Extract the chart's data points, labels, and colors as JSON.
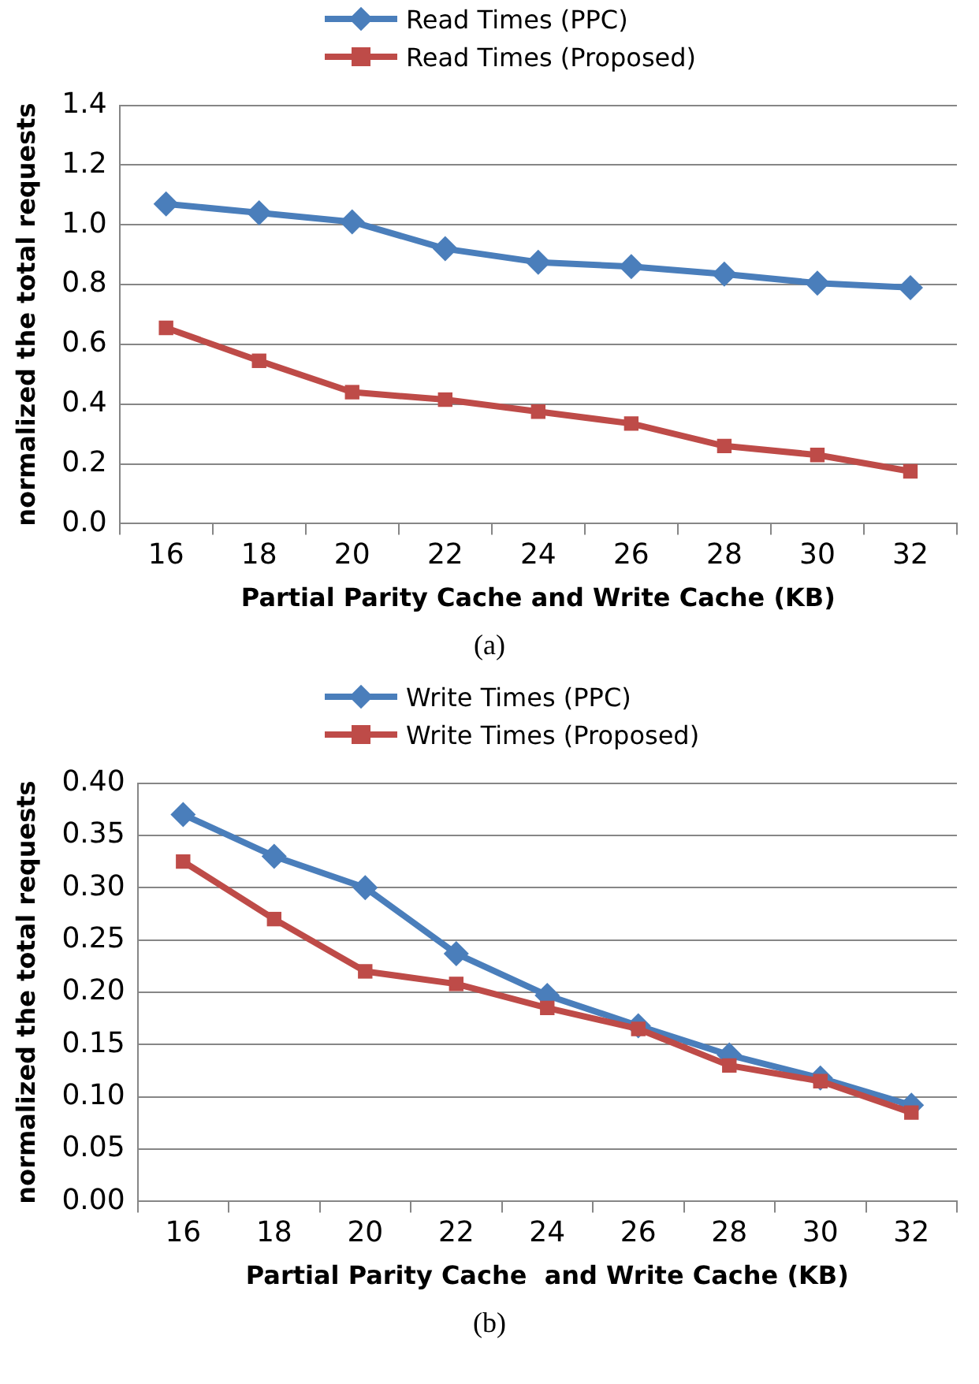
{
  "chart_data": [
    {
      "type": "line",
      "categories": [
        "16",
        "18",
        "20",
        "22",
        "24",
        "26",
        "28",
        "30",
        "32"
      ],
      "xlabel": "Partial Parity Cache and Write Cache (KB)",
      "ylabel": "normalized the total requests",
      "ylim": [
        0,
        1.4
      ],
      "yticks": [
        {
          "value": 0,
          "label": "0.0"
        },
        {
          "value": 0.2,
          "label": "0.2"
        },
        {
          "value": 0.4,
          "label": "0.4"
        },
        {
          "value": 0.6,
          "label": "0.6"
        },
        {
          "value": 0.8,
          "label": "0.8"
        },
        {
          "value": 1,
          "label": "1.0"
        },
        {
          "value": 1.2,
          "label": "1.2"
        },
        {
          "value": 1.4,
          "label": "1.4"
        }
      ],
      "grid": "y",
      "legend": "top",
      "annotations": [
        "(a)"
      ],
      "series": [
        {
          "name": "Read Times (PPC)",
          "color": "#4a7ebb",
          "marker": "diamond",
          "values": [
            1.07,
            1.04,
            1.01,
            0.92,
            0.875,
            0.86,
            0.835,
            0.805,
            0.79
          ]
        },
        {
          "name": "Read Times (Proposed)",
          "color": "#be4b48",
          "marker": "square",
          "values": [
            0.655,
            0.545,
            0.44,
            0.415,
            0.375,
            0.335,
            0.26,
            0.23,
            0.175
          ]
        }
      ]
    },
    {
      "type": "line",
      "categories": [
        "16",
        "18",
        "20",
        "22",
        "24",
        "26",
        "28",
        "30",
        "32"
      ],
      "xlabel": "Partial Parity Cache  and Write Cache (KB)",
      "ylabel": "normalized the total requests",
      "ylim": [
        0,
        0.4
      ],
      "yticks": [
        {
          "value": 0,
          "label": "0.00"
        },
        {
          "value": 0.05,
          "label": "0.05"
        },
        {
          "value": 0.1,
          "label": "0.10"
        },
        {
          "value": 0.15,
          "label": "0.15"
        },
        {
          "value": 0.2,
          "label": "0.20"
        },
        {
          "value": 0.25,
          "label": "0.25"
        },
        {
          "value": 0.3,
          "label": "0.30"
        },
        {
          "value": 0.35,
          "label": "0.35"
        },
        {
          "value": 0.4,
          "label": "0.40"
        }
      ],
      "grid": "y",
      "legend": "top",
      "annotations": [
        "(b)"
      ],
      "series": [
        {
          "name": "Write Times (PPC)",
          "color": "#4a7ebb",
          "marker": "diamond",
          "values": [
            0.37,
            0.33,
            0.3,
            0.237,
            0.197,
            0.168,
            0.14,
            0.118,
            0.092
          ]
        },
        {
          "name": "Write Times (Proposed)",
          "color": "#be4b48",
          "marker": "square",
          "values": [
            0.325,
            0.27,
            0.22,
            0.208,
            0.185,
            0.165,
            0.13,
            0.115,
            0.085
          ]
        }
      ]
    }
  ]
}
